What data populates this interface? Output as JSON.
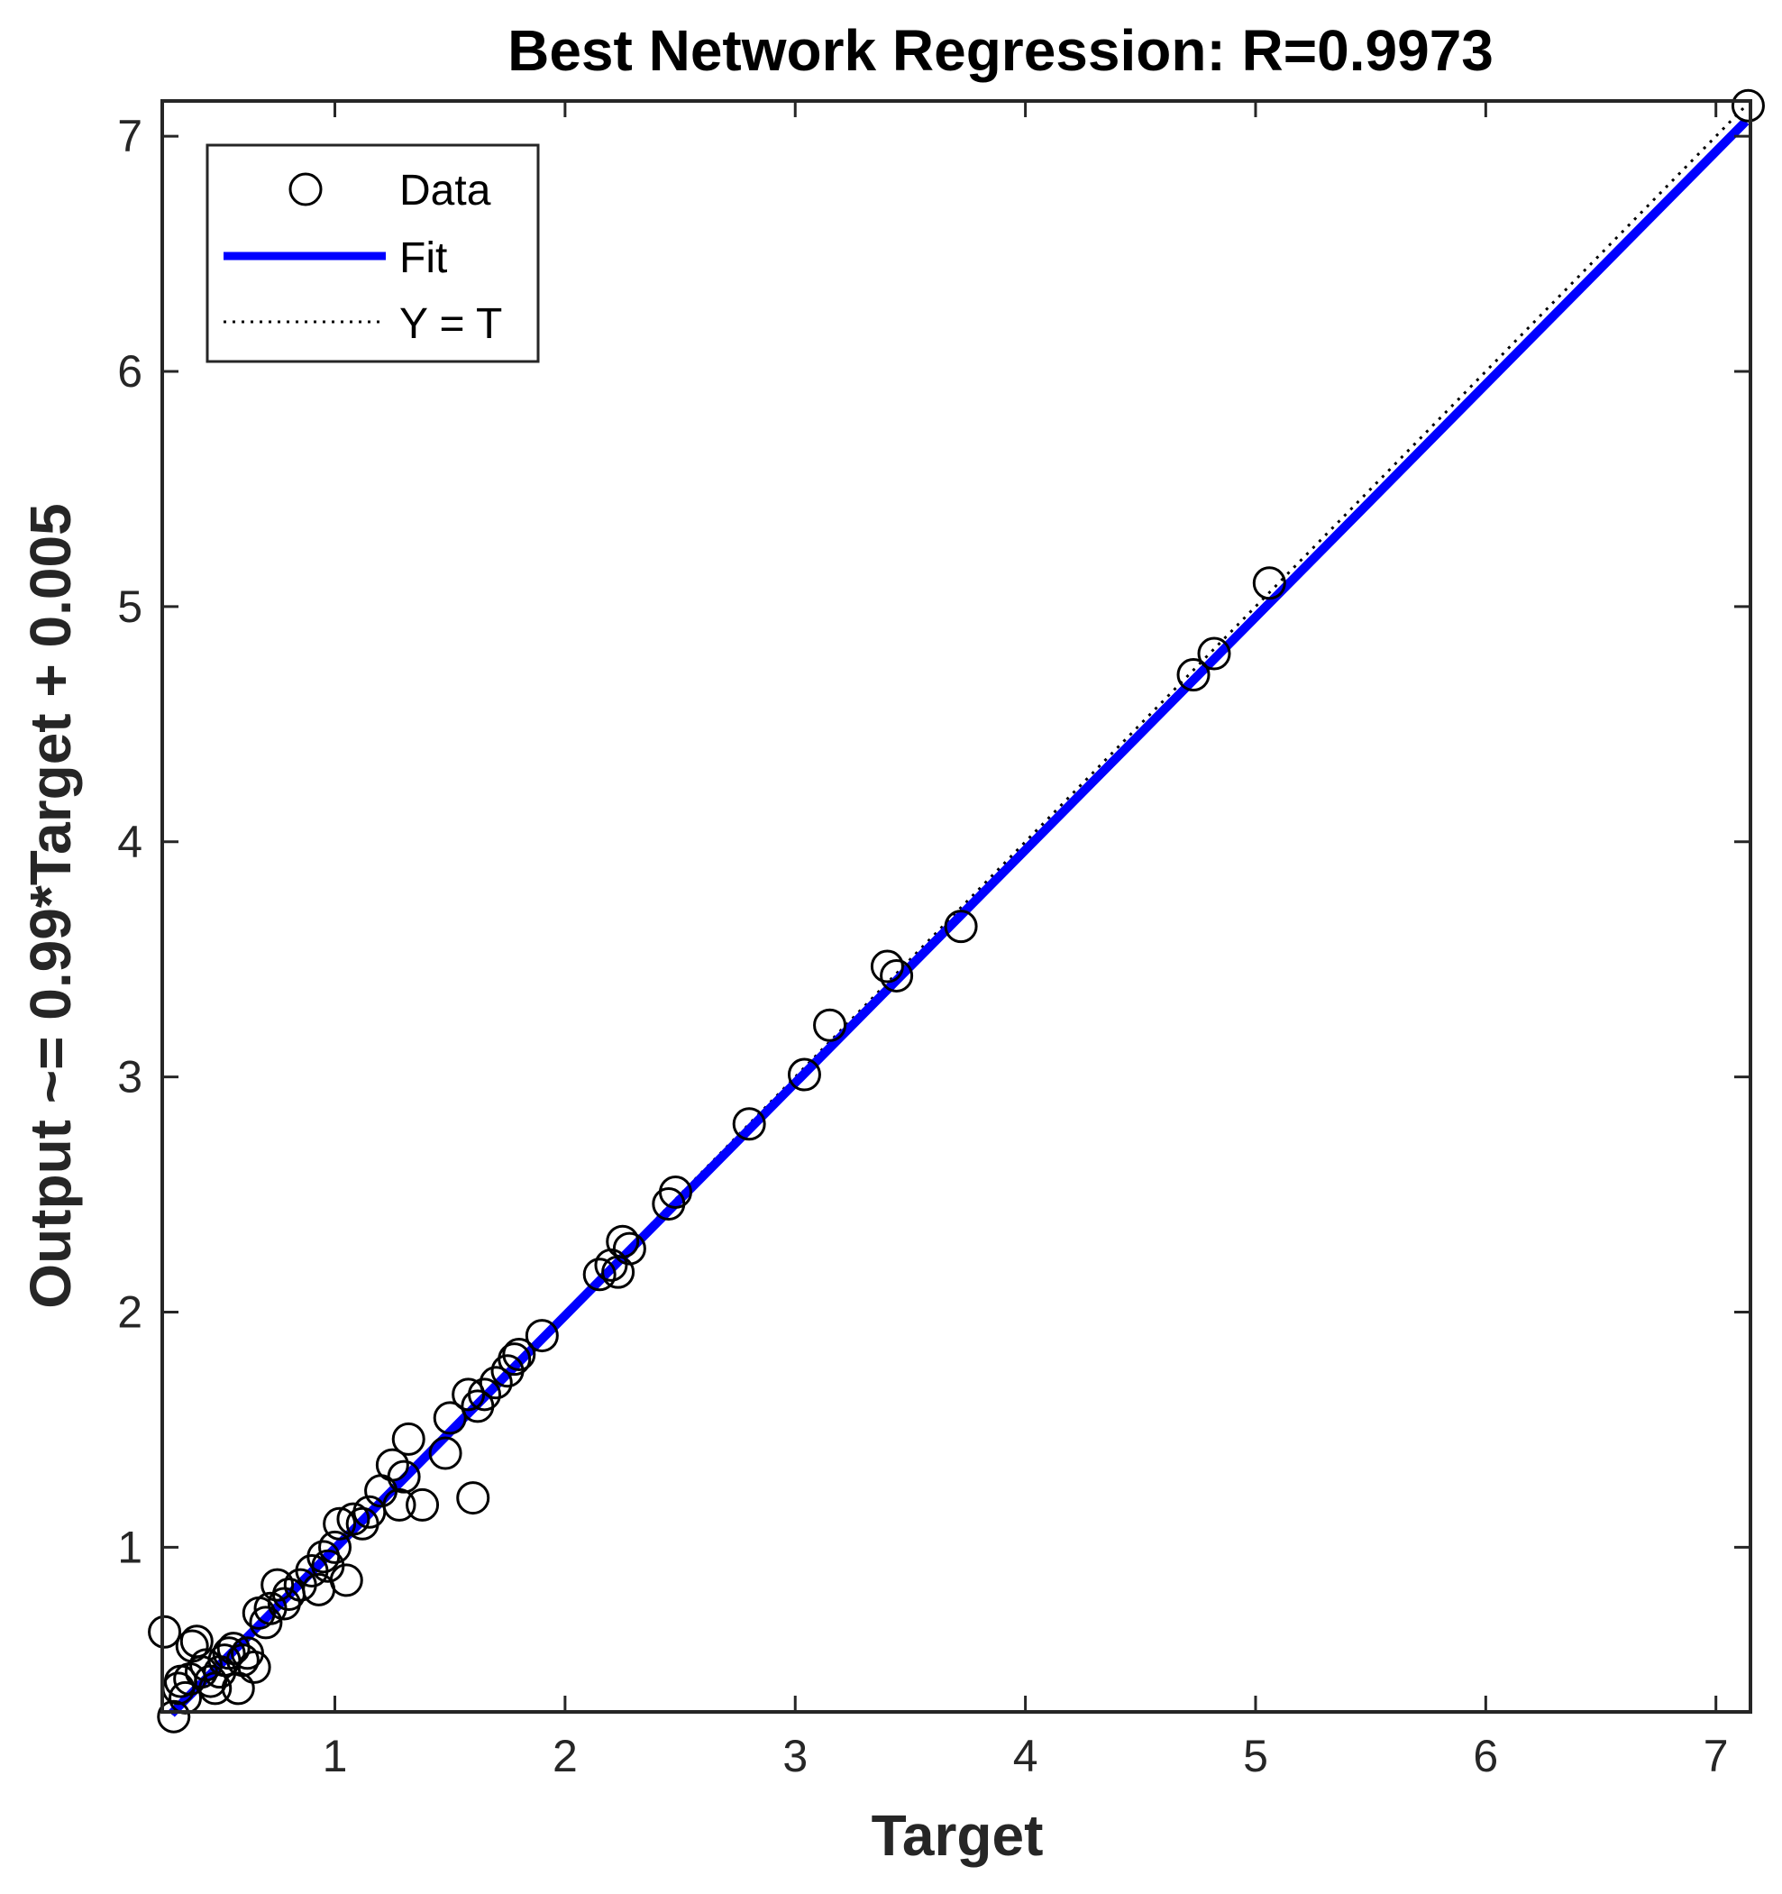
{
  "chart_data": {
    "type": "scatter",
    "title": "Best Network Regression: R=0.9973",
    "xlabel": "Target",
    "ylabel": "Output ~= 0.99*Target + 0.005",
    "xlim": [
      0.25,
      7.15
    ],
    "ylim": [
      0.3,
      7.15
    ],
    "xticks": [
      1,
      2,
      3,
      4,
      5,
      6,
      7
    ],
    "yticks": [
      1,
      2,
      3,
      4,
      5,
      6,
      7
    ],
    "grid": false,
    "legend_position": "top-left",
    "legend": [
      "Data",
      "Fit",
      "Y = T"
    ],
    "colors": {
      "data": "#000000",
      "fit": "#0000ff",
      "identity": "#000000"
    },
    "series": [
      {
        "name": "Data",
        "marker": "circle",
        "points": [
          [
            0.26,
            0.64
          ],
          [
            0.3,
            0.28
          ],
          [
            0.32,
            0.4
          ],
          [
            0.33,
            0.43
          ],
          [
            0.35,
            0.36
          ],
          [
            0.37,
            0.44
          ],
          [
            0.38,
            0.58
          ],
          [
            0.4,
            0.6
          ],
          [
            0.42,
            0.47
          ],
          [
            0.44,
            0.5
          ],
          [
            0.46,
            0.43
          ],
          [
            0.48,
            0.4
          ],
          [
            0.5,
            0.47
          ],
          [
            0.52,
            0.52
          ],
          [
            0.54,
            0.55
          ],
          [
            0.56,
            0.57
          ],
          [
            0.58,
            0.4
          ],
          [
            0.6,
            0.52
          ],
          [
            0.62,
            0.55
          ],
          [
            0.65,
            0.49
          ],
          [
            0.67,
            0.72
          ],
          [
            0.7,
            0.68
          ],
          [
            0.72,
            0.74
          ],
          [
            0.75,
            0.84
          ],
          [
            0.78,
            0.76
          ],
          [
            0.8,
            0.8
          ],
          [
            0.85,
            0.84
          ],
          [
            0.9,
            0.9
          ],
          [
            0.93,
            0.82
          ],
          [
            0.95,
            0.96
          ],
          [
            0.97,
            0.92
          ],
          [
            1.0,
            1.0
          ],
          [
            1.02,
            1.1
          ],
          [
            1.05,
            0.86
          ],
          [
            1.08,
            1.12
          ],
          [
            1.12,
            1.1
          ],
          [
            1.15,
            1.15
          ],
          [
            1.2,
            1.24
          ],
          [
            1.25,
            1.35
          ],
          [
            1.28,
            1.18
          ],
          [
            1.3,
            1.3
          ],
          [
            1.32,
            1.46
          ],
          [
            1.38,
            1.18
          ],
          [
            1.48,
            1.4
          ],
          [
            1.5,
            1.55
          ],
          [
            1.58,
            1.65
          ],
          [
            1.6,
            1.21
          ],
          [
            1.62,
            1.6
          ],
          [
            1.65,
            1.65
          ],
          [
            1.7,
            1.7
          ],
          [
            1.75,
            1.75
          ],
          [
            1.78,
            1.8
          ],
          [
            1.8,
            1.82
          ],
          [
            1.9,
            1.9
          ],
          [
            2.15,
            2.16
          ],
          [
            2.2,
            2.2
          ],
          [
            2.23,
            2.17
          ],
          [
            2.25,
            2.3
          ],
          [
            2.28,
            2.27
          ],
          [
            2.45,
            2.46
          ],
          [
            2.48,
            2.51
          ],
          [
            2.8,
            2.8
          ],
          [
            3.04,
            3.01
          ],
          [
            3.15,
            3.22
          ],
          [
            3.4,
            3.47
          ],
          [
            3.44,
            3.43
          ],
          [
            3.72,
            3.64
          ],
          [
            4.73,
            4.71
          ],
          [
            4.82,
            4.8
          ],
          [
            5.06,
            5.1
          ],
          [
            7.14,
            7.13
          ]
        ]
      },
      {
        "name": "Fit",
        "slope": 0.99,
        "intercept": 0.005
      },
      {
        "name": "Y = T",
        "slope": 1,
        "intercept": 0
      }
    ]
  }
}
